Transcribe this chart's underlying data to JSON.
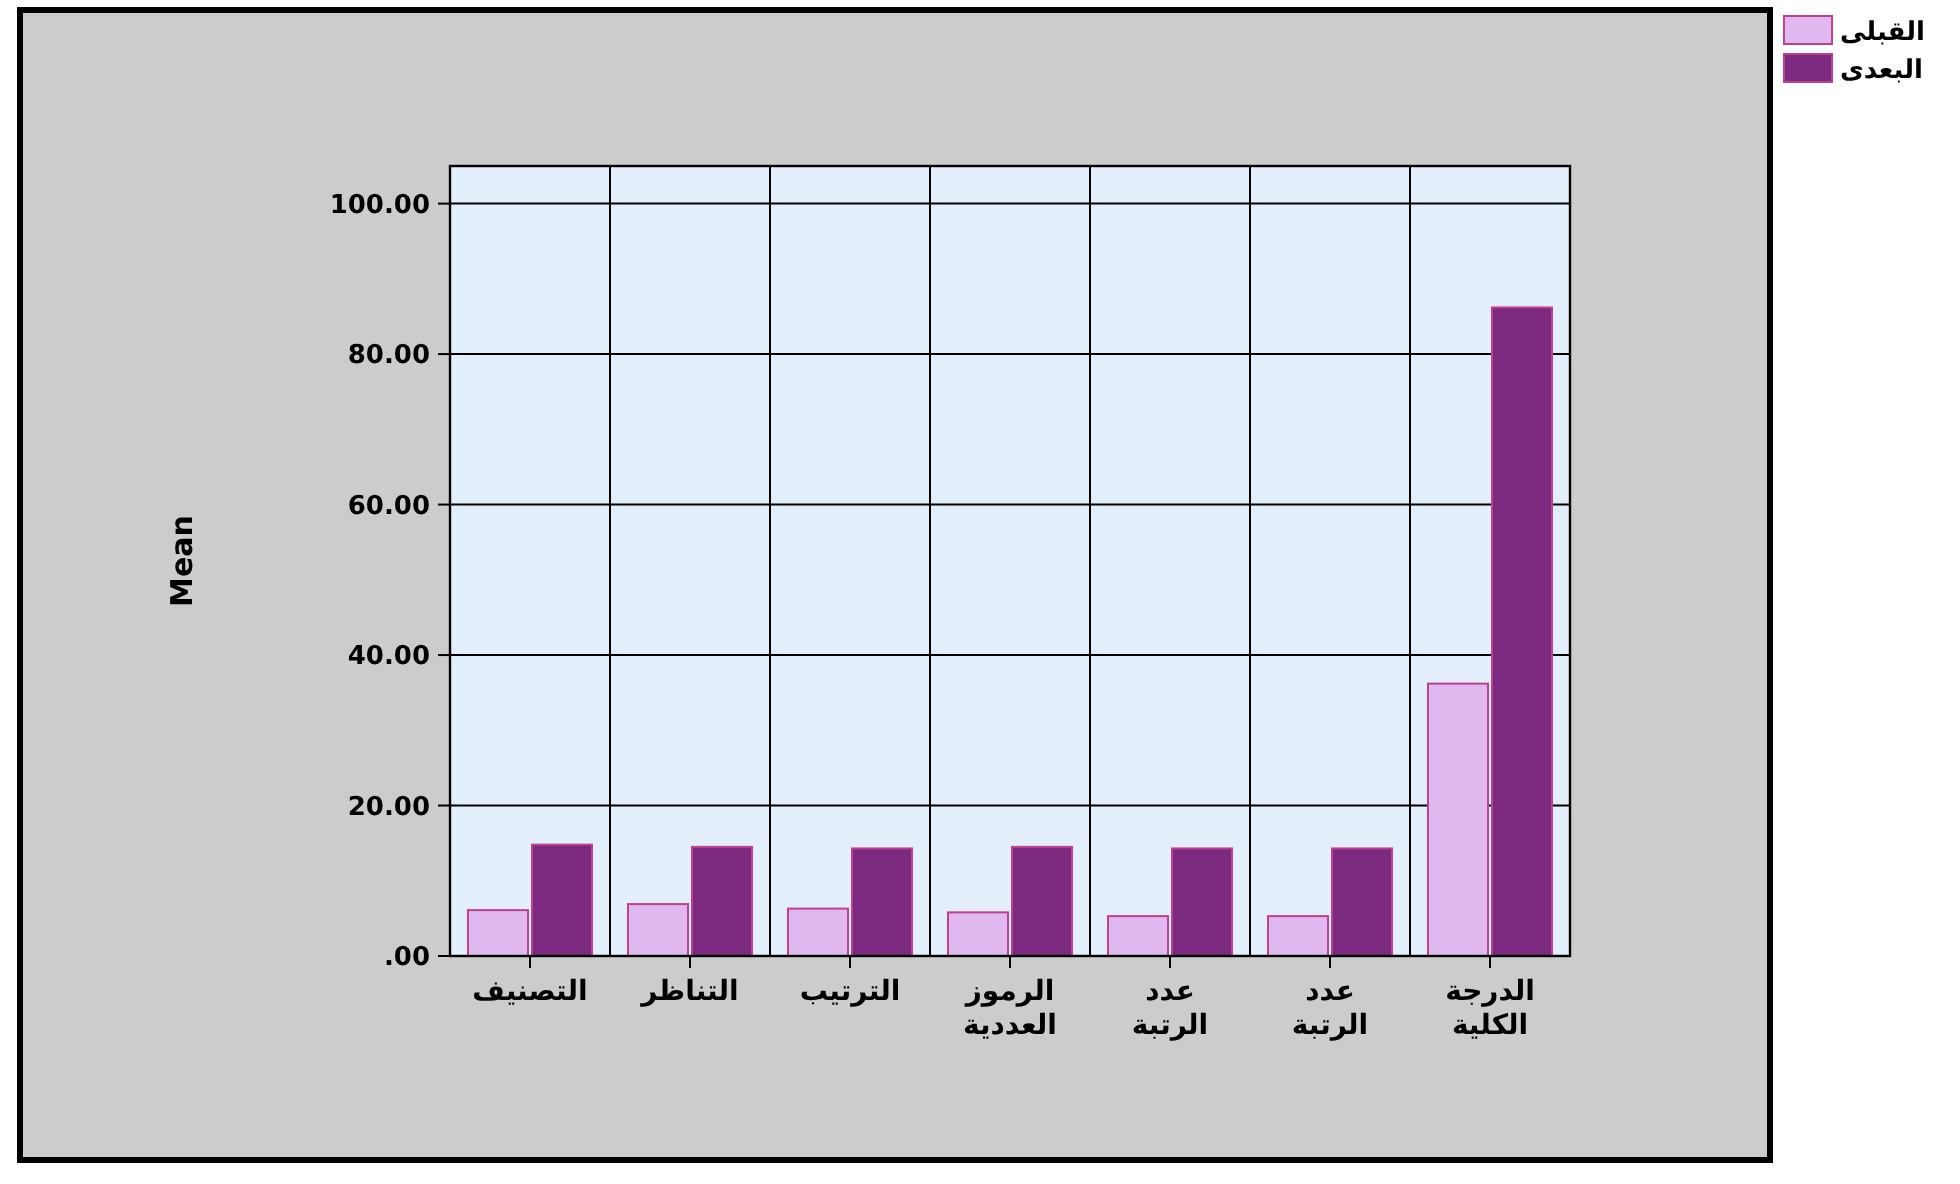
{
  "chart_data": {
    "type": "bar",
    "ylabel": "Mean",
    "categories": [
      "التصنيف",
      "التناظر",
      "الترتيب",
      "الرموز العددية",
      "عدد الرتبة",
      "عدد الرتبة",
      "الدرجة الكلية"
    ],
    "series": [
      {
        "name": "القبلى",
        "color": "#e0b8f0",
        "values": [
          6.1,
          6.9,
          6.3,
          5.8,
          5.3,
          5.3,
          36.2
        ]
      },
      {
        "name": "البعدى",
        "color": "#7b2a7f",
        "values": [
          14.8,
          14.5,
          14.3,
          14.5,
          14.3,
          14.3,
          86.2
        ]
      }
    ],
    "ylim": [
      0,
      105
    ],
    "yticks": [
      {
        "value": 0,
        "label": ".00"
      },
      {
        "value": 20,
        "label": "20.00"
      },
      {
        "value": 40,
        "label": "40.00"
      },
      {
        "value": 60,
        "label": "60.00"
      },
      {
        "value": 80,
        "label": "80.00"
      },
      {
        "value": 100,
        "label": "100.00"
      }
    ],
    "grid": true,
    "legend": "top right"
  }
}
